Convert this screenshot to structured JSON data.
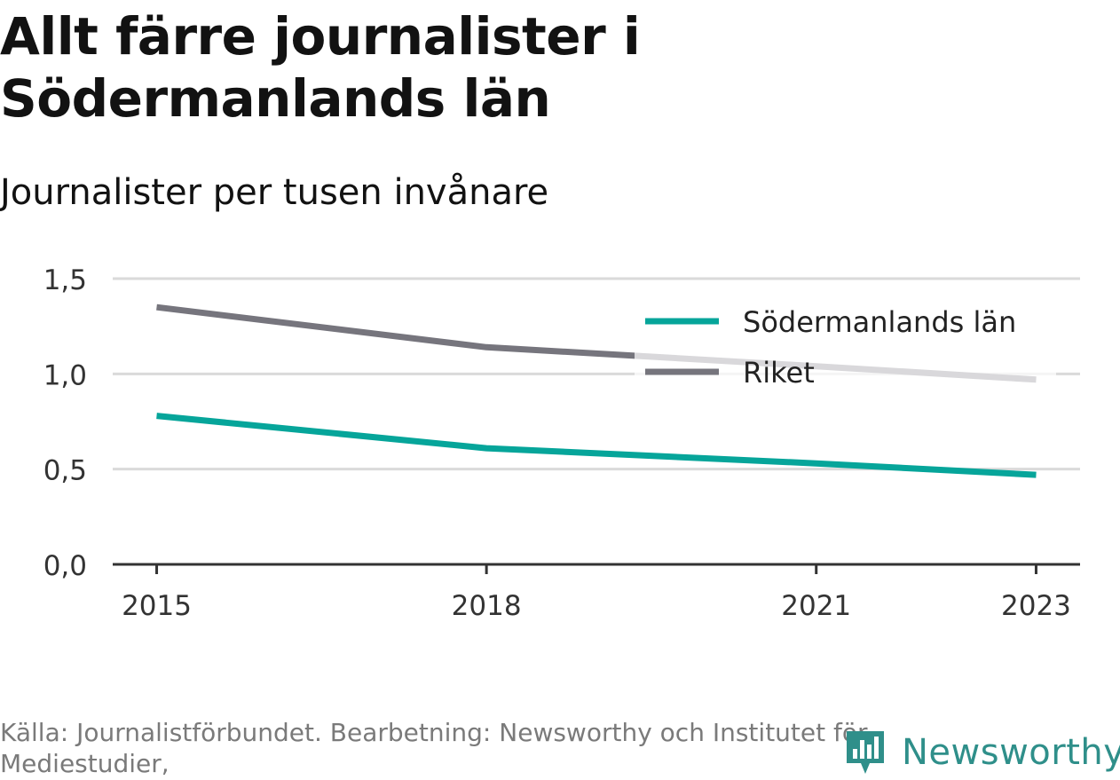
{
  "header": {
    "title": "Allt färre journalister i Södermanlands län",
    "subtitle": "Journalister per tusen invånare"
  },
  "footer": {
    "source": "Källa: Journalistförbundet. Bearbetning: Newsworthy och Institutet för Mediestudier,"
  },
  "logo": {
    "text": "Newsworthy",
    "icon": "newsworthy-bar-chart-icon",
    "color": "#2f8f8a"
  },
  "chart_data": {
    "type": "line",
    "title": "Allt färre journalister i Södermanlands län",
    "subtitle": "Journalister per tusen invånare",
    "x_ticks": [
      2015,
      2018,
      2021,
      2023
    ],
    "x_range": [
      2014.6,
      2023.4
    ],
    "ylim": [
      0,
      1.5
    ],
    "y_ticks": [
      {
        "value": 0,
        "label": "0,0"
      },
      {
        "value": 0.5,
        "label": "0,5"
      },
      {
        "value": 1.0,
        "label": "1,0"
      },
      {
        "value": 1.5,
        "label": "1,5"
      }
    ],
    "grid": true,
    "legend_position": "top-right",
    "series": [
      {
        "name": "Södermanlands län",
        "color": "#06a59a",
        "points": [
          {
            "x": 2015,
            "y": 0.78
          },
          {
            "x": 2018,
            "y": 0.61
          },
          {
            "x": 2021,
            "y": 0.53
          },
          {
            "x": 2023,
            "y": 0.47
          }
        ]
      },
      {
        "name": "Riket",
        "color": "#76757d",
        "points": [
          {
            "x": 2015,
            "y": 1.35
          },
          {
            "x": 2018,
            "y": 1.14
          },
          {
            "x": 2021,
            "y": 1.04
          },
          {
            "x": 2023,
            "y": 0.97
          }
        ]
      }
    ]
  }
}
